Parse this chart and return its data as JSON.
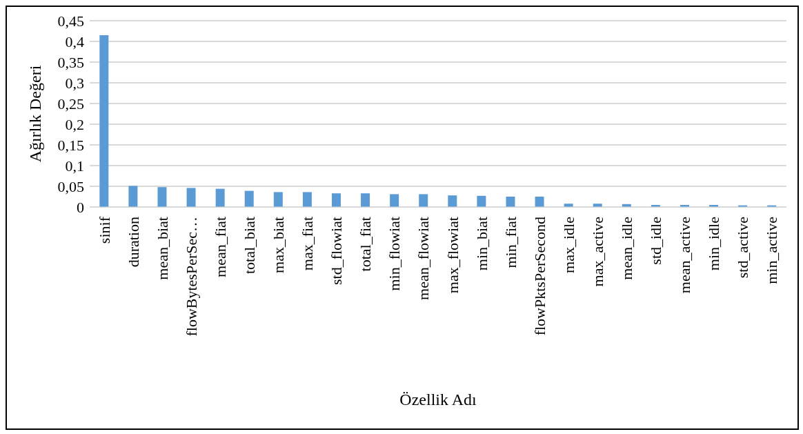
{
  "chart_data": {
    "type": "bar",
    "xlabel": "Özellik Adı",
    "ylabel": "Ağırlık Değeri",
    "categories": [
      "sinif",
      "duration",
      "mean_biat",
      "flowBytesPerSec…",
      "mean_fiat",
      "total_biat",
      "max_biat",
      "max_fiat",
      "std_flowiat",
      "total_fiat",
      "min_flowiat",
      "mean_flowiat",
      "max_flowiat",
      "min_biat",
      "min_fiat",
      "flowPktsPerSecond",
      "max_idle",
      "max_active",
      "mean_idle",
      "std_idle",
      "mean_active",
      "min_idle",
      "std_active",
      "min_active"
    ],
    "values": [
      0.415,
      0.051,
      0.048,
      0.046,
      0.044,
      0.039,
      0.036,
      0.036,
      0.033,
      0.033,
      0.031,
      0.031,
      0.028,
      0.027,
      0.025,
      0.025,
      0.008,
      0.008,
      0.007,
      0.005,
      0.005,
      0.005,
      0.004,
      0.004
    ],
    "color": "#5b9bd5",
    "ylim": [
      0,
      0.45
    ],
    "yticks": [
      0,
      {
        "value": 0.05,
        "label": "0,05"
      },
      {
        "value": 0.1,
        "label": "0,1"
      },
      {
        "value": 0.15,
        "label": "0,15"
      },
      {
        "value": 0.2,
        "label": "0,2"
      },
      {
        "value": 0.25,
        "label": "0,25"
      },
      {
        "value": 0.3,
        "label": "0,3"
      },
      {
        "value": 0.35,
        "label": "0,35"
      },
      {
        "value": 0.4,
        "label": "0,4"
      },
      {
        "value": 0.45,
        "label": "0,45"
      }
    ],
    "grid": "y",
    "legend": false
  }
}
